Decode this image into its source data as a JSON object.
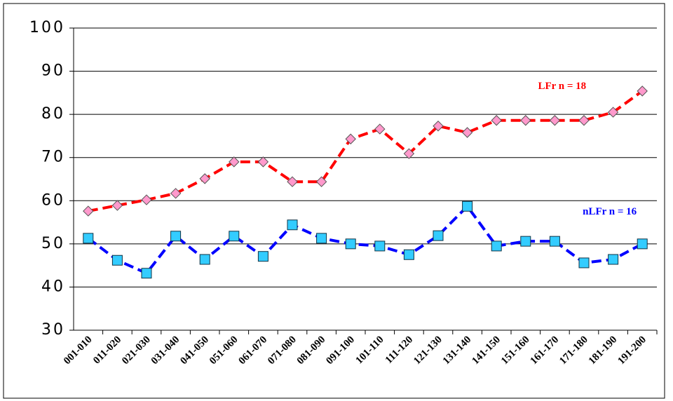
{
  "chart_data": {
    "type": "line",
    "categories": [
      "001-010",
      "011-020",
      "021-030",
      "031-040",
      "041-050",
      "051-060",
      "061-070",
      "071-080",
      "081-090",
      "091-100",
      "101-110",
      "111-120",
      "121-130",
      "131-140",
      "141-150",
      "151-160",
      "161-170",
      "171-180",
      "181-190",
      "191-200"
    ],
    "series": [
      {
        "name": "LFr n = 18",
        "color": "#ff0000",
        "marker_color": "#ff99cc",
        "marker": "diamond",
        "values": [
          57.6,
          58.9,
          60.2,
          61.7,
          65.1,
          69.0,
          69.0,
          64.4,
          64.4,
          74.3,
          76.6,
          70.9,
          77.3,
          75.8,
          78.6,
          78.6,
          78.6,
          78.6,
          80.5,
          85.4
        ]
      },
      {
        "name": "nLFr n = 16",
        "color": "#0000ff",
        "marker_color": "#33ccff",
        "marker": "square",
        "values": [
          51.3,
          46.2,
          43.2,
          51.8,
          46.4,
          51.8,
          47.1,
          54.4,
          51.3,
          50.0,
          49.5,
          47.5,
          51.9,
          58.7,
          49.5,
          50.6,
          50.6,
          45.6,
          46.4,
          50.0
        ]
      }
    ],
    "ylim": [
      30,
      100
    ],
    "yticks": [
      30,
      40,
      50,
      60,
      70,
      80,
      90,
      100
    ],
    "grid": true
  }
}
